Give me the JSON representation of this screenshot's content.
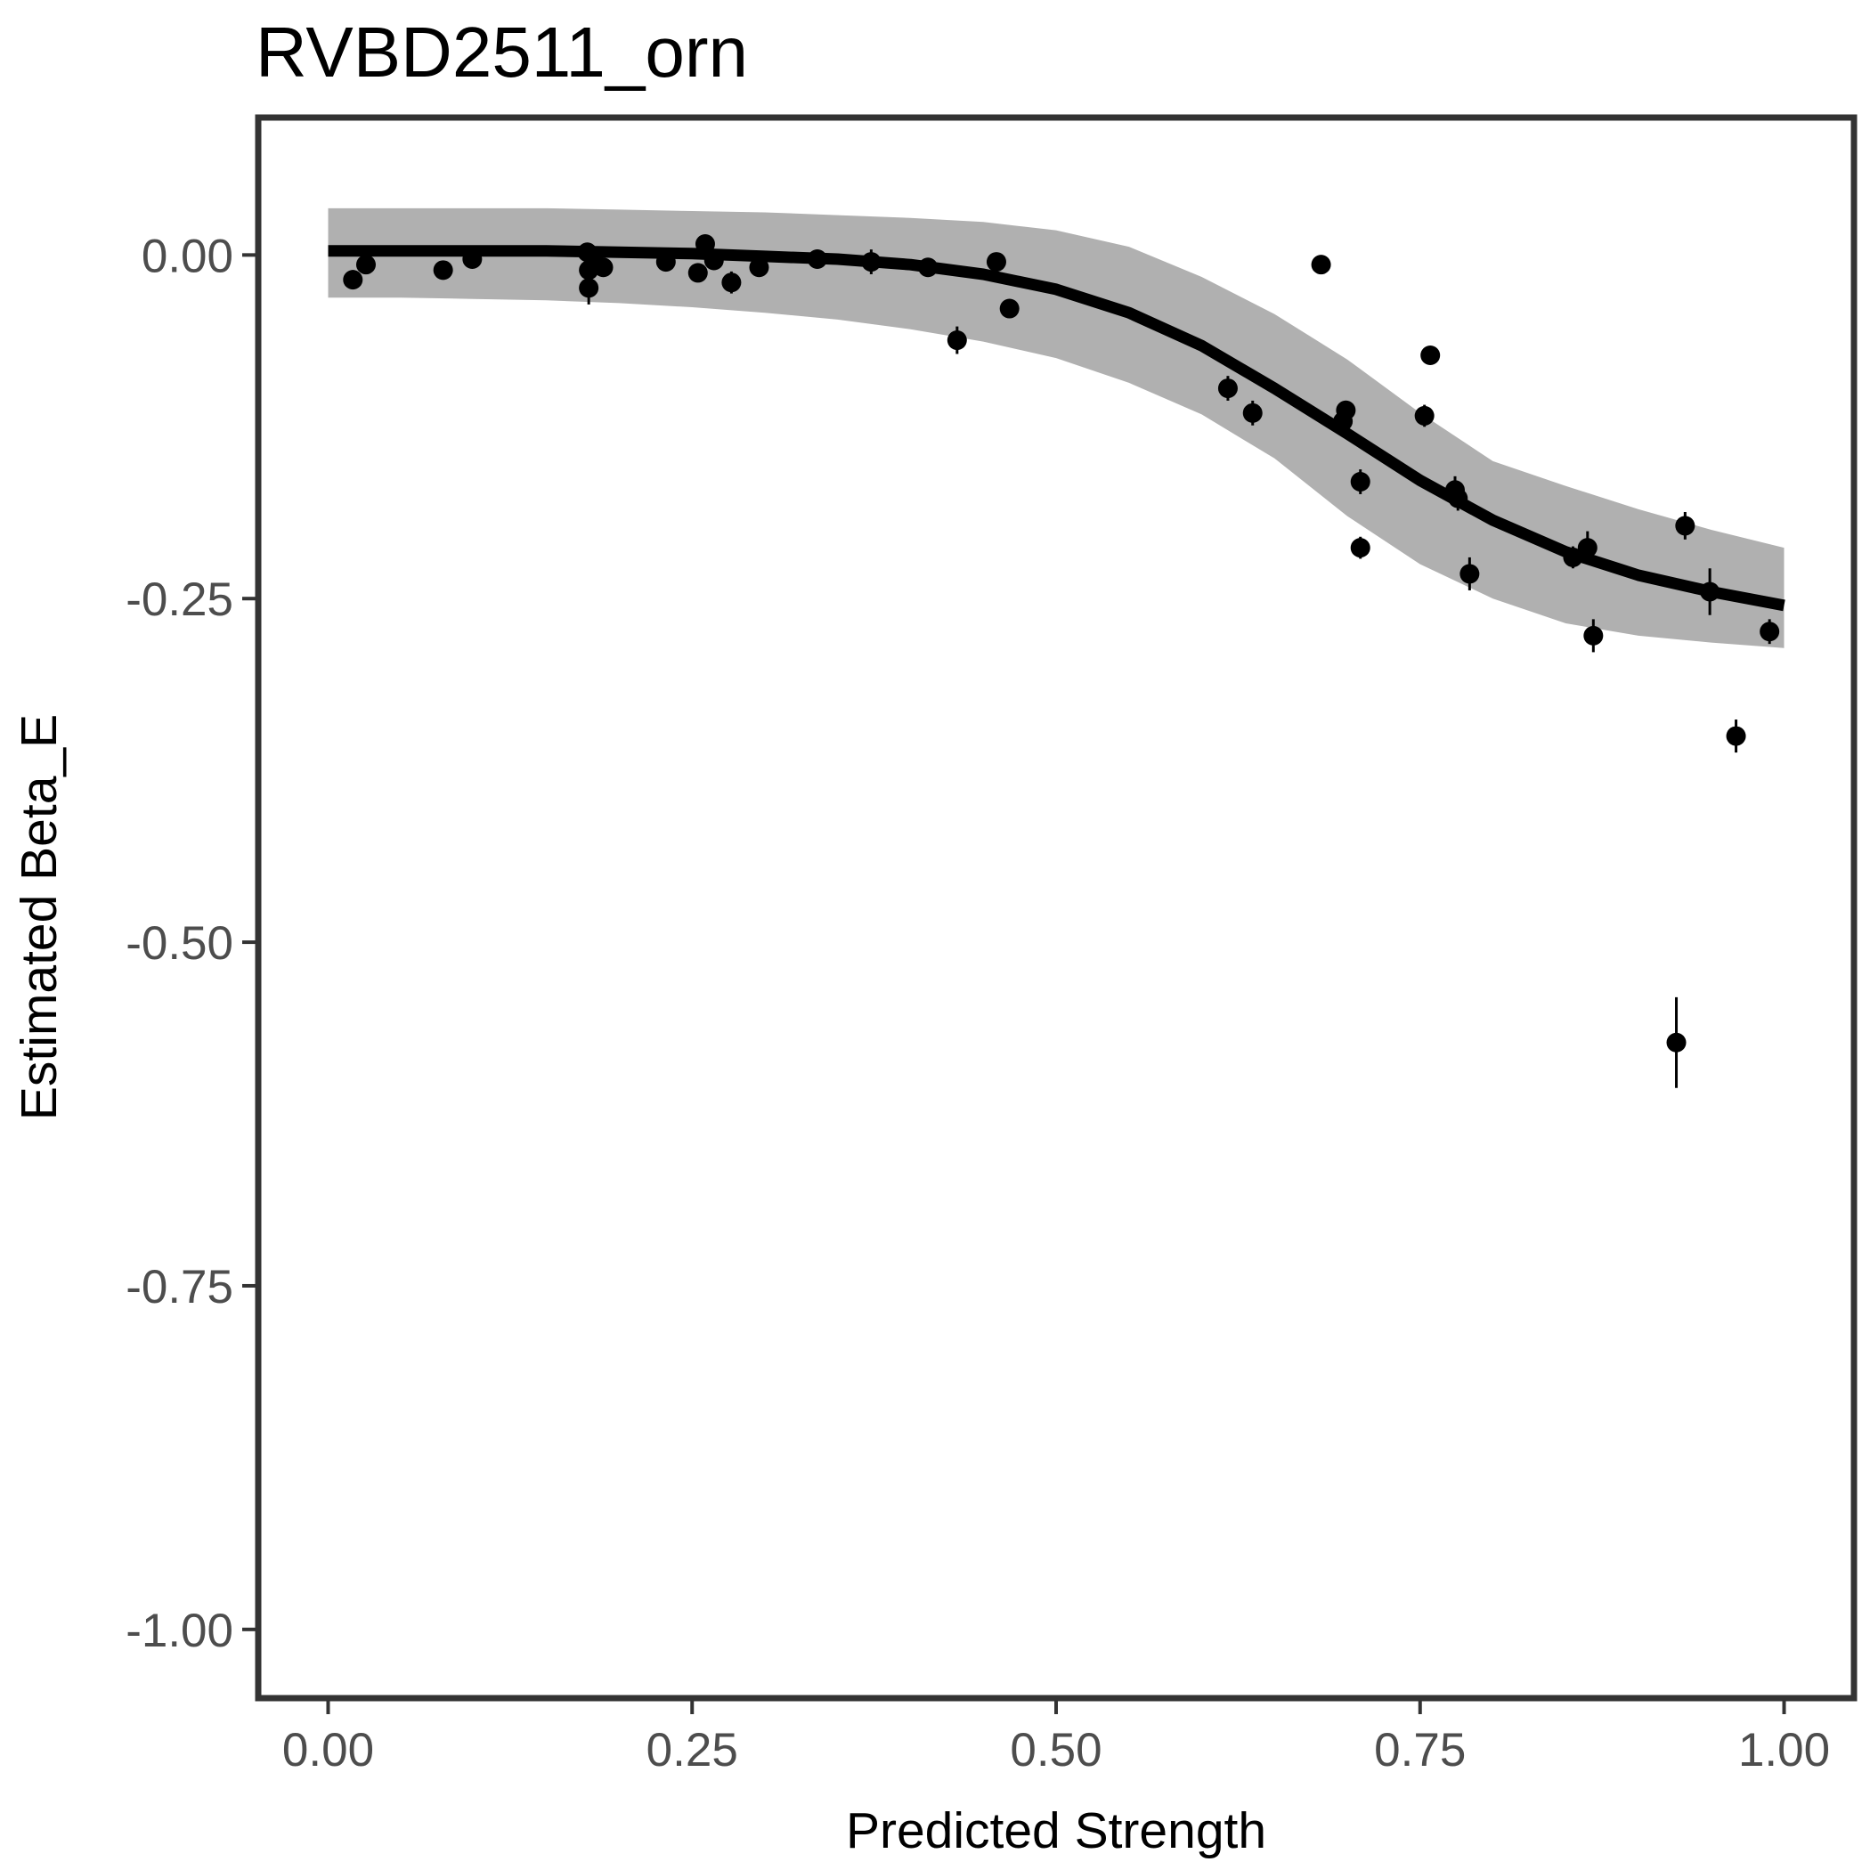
{
  "chart_data": {
    "type": "scatter",
    "title": "RVBD2511_orn",
    "xlabel": "Predicted Strength",
    "ylabel": "Estimated Beta_E",
    "xlim": [
      -0.048,
      1.048
    ],
    "ylim": [
      -1.05,
      0.1
    ],
    "xticks": [
      0.0,
      0.25,
      0.5,
      0.75,
      1.0
    ],
    "xtick_labels": [
      "0.00",
      "0.25",
      "0.50",
      "0.75",
      "1.00"
    ],
    "yticks": [
      0.0,
      -0.25,
      -0.5,
      -0.75,
      -1.0
    ],
    "ytick_labels": [
      "0.00",
      "-0.25",
      "-0.50",
      "-0.75",
      "-1.00"
    ],
    "grid": false,
    "colors": {
      "points": "#000000",
      "fit_line": "#000000",
      "ribbon": "#b0b0b0",
      "panel_border": "#333333"
    },
    "points": [
      {
        "x": 0.017,
        "y": -0.018,
        "err": 0.007
      },
      {
        "x": 0.026,
        "y": -0.007,
        "err": 0.005
      },
      {
        "x": 0.079,
        "y": -0.011,
        "err": 0.006
      },
      {
        "x": 0.099,
        "y": -0.003,
        "err": 0.005
      },
      {
        "x": 0.178,
        "y": 0.002,
        "err": 0.006
      },
      {
        "x": 0.179,
        "y": -0.011,
        "err": 0.008
      },
      {
        "x": 0.179,
        "y": -0.024,
        "err": 0.012
      },
      {
        "x": 0.183,
        "y": -0.005,
        "err": 0.006
      },
      {
        "x": 0.189,
        "y": -0.009,
        "err": 0.006
      },
      {
        "x": 0.232,
        "y": -0.005,
        "err": 0.005
      },
      {
        "x": 0.254,
        "y": -0.013,
        "err": 0.006
      },
      {
        "x": 0.259,
        "y": 0.008,
        "err": 0.006
      },
      {
        "x": 0.265,
        "y": -0.004,
        "err": 0.005
      },
      {
        "x": 0.277,
        "y": -0.02,
        "err": 0.008
      },
      {
        "x": 0.296,
        "y": -0.009,
        "err": 0.006
      },
      {
        "x": 0.336,
        "y": -0.003,
        "err": 0.004
      },
      {
        "x": 0.373,
        "y": -0.005,
        "err": 0.009
      },
      {
        "x": 0.412,
        "y": -0.009,
        "err": 0.004
      },
      {
        "x": 0.432,
        "y": -0.062,
        "err": 0.01
      },
      {
        "x": 0.459,
        "y": -0.005,
        "err": 0.006
      },
      {
        "x": 0.468,
        "y": -0.039,
        "err": 0.006
      },
      {
        "x": 0.618,
        "y": -0.097,
        "err": 0.009
      },
      {
        "x": 0.635,
        "y": -0.115,
        "err": 0.009
      },
      {
        "x": 0.682,
        "y": -0.007,
        "err": 0.006
      },
      {
        "x": 0.697,
        "y": -0.121,
        "err": 0.008
      },
      {
        "x": 0.699,
        "y": -0.113,
        "err": 0.006
      },
      {
        "x": 0.709,
        "y": -0.165,
        "err": 0.009
      },
      {
        "x": 0.709,
        "y": -0.213,
        "err": 0.008
      },
      {
        "x": 0.753,
        "y": -0.117,
        "err": 0.008
      },
      {
        "x": 0.757,
        "y": -0.073,
        "err": 0.006
      },
      {
        "x": 0.774,
        "y": -0.171,
        "err": 0.01
      },
      {
        "x": 0.776,
        "y": -0.177,
        "err": 0.009
      },
      {
        "x": 0.784,
        "y": -0.232,
        "err": 0.012
      },
      {
        "x": 0.855,
        "y": -0.22,
        "err": 0.008
      },
      {
        "x": 0.865,
        "y": -0.213,
        "err": 0.012
      },
      {
        "x": 0.869,
        "y": -0.277,
        "err": 0.012
      },
      {
        "x": 0.926,
        "y": -0.573,
        "err": 0.033
      },
      {
        "x": 0.932,
        "y": -0.197,
        "err": 0.01
      },
      {
        "x": 0.949,
        "y": -0.245,
        "err": 0.017
      },
      {
        "x": 0.967,
        "y": -0.35,
        "err": 0.012
      },
      {
        "x": 0.99,
        "y": -0.274,
        "err": 0.009
      }
    ],
    "fit_line": {
      "x": [
        0.0,
        0.05,
        0.1,
        0.15,
        0.2,
        0.25,
        0.3,
        0.35,
        0.4,
        0.45,
        0.5,
        0.55,
        0.6,
        0.65,
        0.7,
        0.75,
        0.8,
        0.85,
        0.9,
        0.95,
        1.0
      ],
      "y": [
        0.003,
        0.003,
        0.003,
        0.003,
        0.002,
        0.001,
        -0.001,
        -0.003,
        -0.007,
        -0.014,
        -0.025,
        -0.042,
        -0.066,
        -0.097,
        -0.13,
        -0.164,
        -0.193,
        -0.216,
        -0.233,
        -0.245,
        -0.255
      ]
    },
    "ribbon": {
      "x": [
        0.0,
        0.05,
        0.1,
        0.15,
        0.2,
        0.25,
        0.3,
        0.35,
        0.4,
        0.45,
        0.5,
        0.55,
        0.6,
        0.65,
        0.7,
        0.75,
        0.8,
        0.85,
        0.9,
        0.95,
        1.0
      ],
      "upper": [
        0.034,
        0.034,
        0.034,
        0.034,
        0.033,
        0.032,
        0.031,
        0.029,
        0.027,
        0.024,
        0.018,
        0.006,
        -0.016,
        -0.043,
        -0.076,
        -0.115,
        -0.15,
        -0.168,
        -0.185,
        -0.2,
        -0.213
      ],
      "lower": [
        -0.031,
        -0.031,
        -0.032,
        -0.033,
        -0.035,
        -0.038,
        -0.042,
        -0.047,
        -0.054,
        -0.063,
        -0.075,
        -0.093,
        -0.116,
        -0.148,
        -0.19,
        -0.225,
        -0.25,
        -0.268,
        -0.277,
        -0.282,
        -0.286
      ]
    }
  }
}
